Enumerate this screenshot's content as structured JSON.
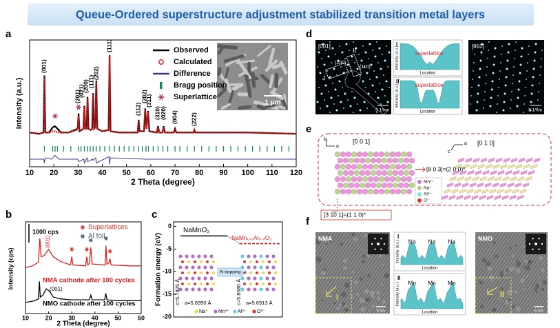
{
  "title": "Queue-Ordered superstructure adjustment stabilized transition metal layers",
  "chart_data": [
    {
      "type": "line",
      "panel": "a",
      "xlabel": "2 Theta (degree)",
      "ylabel": "Intensity (a.u.)",
      "xlim": [
        10,
        120
      ],
      "ylim": [
        0,
        100
      ],
      "xticks": [
        10,
        20,
        30,
        40,
        50,
        60,
        70,
        80,
        90,
        100,
        110,
        120
      ],
      "series": [
        {
          "name": "Observed",
          "color": "#000000",
          "x": [
            10,
            14,
            15.7,
            16.1,
            16.5,
            18,
            19.5,
            20.5,
            21.5,
            23,
            26,
            29.8,
            30.2,
            30.6,
            31.5,
            32.2,
            32.6,
            33.0,
            33.5,
            33.9,
            34.3,
            35.2,
            35.8,
            36.2,
            36.6,
            37.1,
            37.5,
            37.9,
            40,
            42.6,
            43,
            43.4,
            47,
            54.6,
            55,
            55.4,
            57.2,
            57.7,
            58.2,
            58.9,
            59.4,
            62.5,
            63,
            63.5,
            64.8,
            65.3,
            65.8,
            69.5,
            70,
            70.5,
            77.6,
            78,
            78.4,
            85,
            100,
            120
          ],
          "values": [
            27,
            26,
            27,
            72,
            27,
            27,
            31,
            32,
            30,
            27,
            27,
            30,
            42,
            28,
            29,
            30,
            48,
            30,
            30,
            55,
            30,
            29,
            30,
            58,
            30,
            31,
            68,
            30,
            28,
            29,
            88,
            28,
            27,
            27,
            37,
            28,
            28,
            46,
            30,
            44,
            28,
            27,
            32,
            27,
            27,
            32,
            27,
            27,
            30,
            27,
            27,
            29,
            27,
            27,
            27,
            26
          ]
        },
        {
          "name": "Calculated",
          "color": "#e02020",
          "x": [
            10,
            14,
            15.7,
            16.1,
            16.5,
            18,
            19.5,
            20.5,
            21.5,
            23,
            26,
            29.8,
            30.2,
            30.6,
            31.5,
            32.2,
            32.6,
            33.0,
            33.5,
            33.9,
            34.3,
            35.2,
            35.8,
            36.2,
            36.6,
            37.1,
            37.5,
            37.9,
            40,
            42.6,
            43,
            43.4,
            47,
            54.6,
            55,
            55.4,
            57.2,
            57.7,
            58.2,
            58.9,
            59.4,
            62.5,
            63,
            63.5,
            64.8,
            65.3,
            65.8,
            69.5,
            70,
            70.5,
            77.6,
            78,
            78.4,
            85,
            100,
            120
          ],
          "values": [
            27,
            26,
            27,
            71,
            27,
            27,
            28,
            28,
            27,
            27,
            27,
            29,
            40,
            28,
            29,
            30,
            47,
            30,
            30,
            54,
            30,
            29,
            30,
            57,
            30,
            31,
            67,
            30,
            28,
            29,
            87,
            28,
            27,
            27,
            36,
            28,
            28,
            45,
            30,
            43,
            28,
            27,
            31,
            27,
            27,
            31,
            27,
            27,
            30,
            27,
            27,
            29,
            27,
            27,
            27,
            26
          ]
        },
        {
          "name": "Difference",
          "color": "#3a3a8c",
          "x": [
            10,
            15.8,
            16.1,
            16.4,
            19,
            20.5,
            22,
            29.9,
            30.2,
            32.4,
            32.6,
            33.7,
            33.9,
            36,
            36.2,
            37.3,
            37.5,
            42.8,
            43,
            43.3,
            58,
            120
          ],
          "values": [
            6,
            6,
            3,
            7,
            6,
            9,
            6,
            6,
            4,
            6,
            3,
            7,
            4,
            6,
            5,
            7,
            3,
            8,
            2,
            7,
            6,
            6
          ]
        }
      ],
      "bragg": {
        "name": "Bragg position",
        "color": "#1a8a5a",
        "x": [
          16.1,
          19.5,
          20.5,
          21.5,
          24,
          27,
          30.2,
          31.2,
          32.6,
          33.9,
          35,
          36.2,
          37.5,
          39,
          41,
          43,
          45,
          47,
          49,
          51,
          53,
          55,
          56.5,
          58,
          59,
          61,
          63,
          65,
          67,
          70,
          72,
          75,
          78,
          81,
          84,
          87,
          90,
          93,
          96,
          99,
          102,
          105,
          108,
          111,
          114,
          117
        ]
      },
      "superlattice": {
        "name": "Superlattice",
        "color": "#b0306a",
        "x": [
          20.5,
          30.2
        ],
        "values": [
          40,
          47
        ]
      },
      "peak_labels": [
        "(001)",
        "(201)",
        "(021)",
        "(200)",
        "(11̄1)",
        "(202)",
        "(111)",
        "(112)",
        "(202)",
        "(311)",
        "(310)",
        "(020)",
        "(004)",
        "(222)"
      ],
      "scale_bar": "1 μm"
    },
    {
      "type": "line",
      "panel": "b",
      "xlabel": "2 Theta (degree)",
      "ylabel": "Intensity (cps)",
      "xlim": [
        10,
        60
      ],
      "ylim": [
        0,
        100
      ],
      "xticks": [
        10,
        20,
        30,
        40,
        50,
        60
      ],
      "scale_label": "1000 cps",
      "series": [
        {
          "name": "NMA cathode after 100 cycles",
          "color": "#e02020",
          "x": [
            10,
            13,
            15.6,
            16.2,
            16.8,
            18,
            20,
            22,
            25,
            29.5,
            30,
            30.5,
            36,
            36.5,
            37,
            37.6,
            38.2,
            38.8,
            44.4,
            44.8,
            45.2,
            46,
            46.5,
            47,
            55,
            60
          ],
          "values": [
            50,
            52,
            56,
            82,
            62,
            63,
            70,
            62,
            57,
            53,
            62,
            53,
            52,
            62,
            53,
            55,
            72,
            54,
            53,
            74,
            54,
            55,
            60,
            53,
            52,
            52
          ]
        },
        {
          "name": "NMO cathode after 100 cycles",
          "color": "#000000",
          "x": [
            10,
            14,
            15.6,
            16,
            16.4,
            17.5,
            19,
            20.5,
            22,
            25,
            30,
            37.6,
            38.2,
            38.8,
            44.2,
            44.7,
            45.2,
            50,
            60
          ],
          "values": [
            12,
            14,
            16,
            35,
            18,
            20,
            27,
            24,
            18,
            16,
            15,
            15,
            20,
            15,
            15,
            22,
            15,
            14,
            14
          ]
        }
      ],
      "markers": [
        {
          "name": "Superlattices",
          "color": "#e03030",
          "x": [
            30,
            36.5,
            46.5
          ],
          "values": [
            70,
            70,
            68
          ]
        },
        {
          "name": "Al foil",
          "color": "#4a5a7a",
          "x": [
            38.2,
            44.8
          ],
          "values": [
            80,
            82
          ]
        }
      ],
      "peak_labels": [
        "(001)",
        "(001)"
      ]
    },
    {
      "type": "level",
      "panel": "c",
      "ylabel": "Formation energy (eV)",
      "ylim": [
        -20,
        1
      ],
      "yticks": [
        0,
        -5,
        -10,
        -15,
        -20
      ],
      "categories": [
        "NaMnO₂",
        "NaMn₀.₆Al₀.₄O₂"
      ],
      "values": [
        -2.1,
        -3.8
      ],
      "colors": [
        "#000000",
        "#d02020"
      ],
      "arrow_label": "Al-dopping",
      "lattice": [
        "c=5.7825 Å",
        "a=5.6990 Å",
        "c=5.8080 Å",
        "a=5.6913 Å"
      ],
      "legend": [
        {
          "name": "Na⁺",
          "color": "#e8d84a"
        },
        {
          "name": "Mn³⁺",
          "color": "#b070c0"
        },
        {
          "name": "Al³⁺",
          "color": "#5fd0e0"
        },
        {
          "name": "O²⁻",
          "color": "#e03030"
        }
      ]
    }
  ],
  "panel_d": {
    "label": "d",
    "left": {
      "zone": "[001]",
      "spot_I": "I",
      "spot_II": "II",
      "spot_200": "(200)",
      "spot_110": "(110)",
      "scale": "5 1/nm"
    },
    "profiles": [
      {
        "id": "I",
        "note": "superlattice",
        "ylabel": "Intensity (a.u.)",
        "xlabel": "Location"
      },
      {
        "id": "II",
        "note": "superlattice",
        "ylabel": "Intensity (a.u.)",
        "xlabel": "Location"
      }
    ],
    "right": {
      "zone": "[010]",
      "scale": "5 1/nm"
    }
  },
  "panel_e": {
    "label": "e",
    "left_axes": [
      "b",
      "a"
    ],
    "left_zone": "[0 0 1]",
    "right_axes": [
      "a",
      "c"
    ],
    "right_zone": "[0 1 0]",
    "relation1": "[8 0 3]=(2 0 0)*",
    "relation2": "[3 1̅0̅ 1]=(1 1 0)*",
    "legend": [
      {
        "name": "Mn³⁺",
        "color": "#d878c8"
      },
      {
        "name": "Na⁺",
        "color": "#b8c890"
      },
      {
        "name": "Al³⁺",
        "color": "#7fe0e8"
      },
      {
        "name": "O⁻",
        "color": "#e03030"
      }
    ]
  },
  "panel_f": {
    "label": "f",
    "left": {
      "name": "NMA",
      "marker": "I",
      "scale": "5 nm"
    },
    "profiles": [
      {
        "id": "I",
        "peaks": [
          "Na",
          "Na",
          "Na"
        ],
        "ylabel": "Intensity (a.u.)",
        "xlabel": "Location"
      },
      {
        "id": "II",
        "peaks": [
          "Mn",
          "Mn",
          "Mn"
        ],
        "ylabel": "Intensity (a.u.)",
        "xlabel": "Location"
      }
    ],
    "right": {
      "name": "NMO",
      "marker": "II",
      "scale": "5 nm"
    }
  }
}
